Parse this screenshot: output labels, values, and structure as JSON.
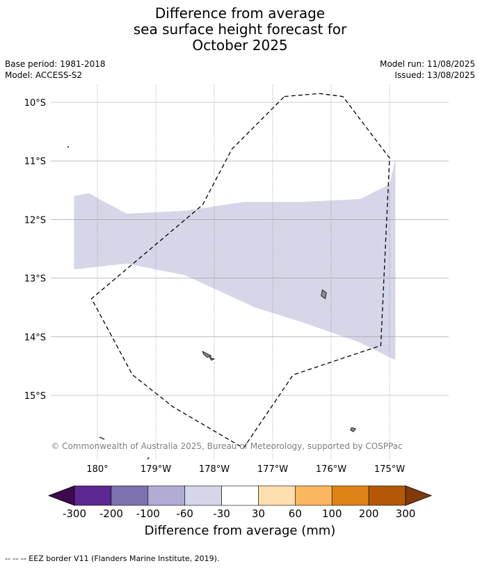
{
  "title": {
    "line1": "Difference from average",
    "line2": "sea surface height forecast for",
    "line3": "October 2025"
  },
  "meta_left": {
    "base_period": "Base period: 1981-2018",
    "model": "Model: ACCESS-S2"
  },
  "meta_right": {
    "model_run": "Model run: 11/08/2025",
    "issued": "Issued: 13/08/2025"
  },
  "copyright": "© Commonwealth of Australia 2025, Bureau of Meteorology, supported by COSPPac",
  "map": {
    "lon_range": [
      179.6,
      185.1
    ],
    "lat_range": [
      -16.0,
      -9.7
    ],
    "lat_labels": [
      "10°S",
      "11°S",
      "12°S",
      "13°S",
      "14°S",
      "15°S"
    ],
    "lat_values": [
      -10,
      -11,
      -12,
      -13,
      -14,
      -15
    ],
    "lon_labels": [
      "180°",
      "179°W",
      "178°W",
      "177°W",
      "176°W",
      "175°W"
    ],
    "lon_values": [
      180,
      181,
      182,
      183,
      184,
      185
    ],
    "band_color": "#d5d6e8",
    "band_category": "-60 to -30",
    "band_top": [
      [
        179.6,
        -11.6
      ],
      [
        179.85,
        -11.55
      ],
      [
        180.5,
        -11.9
      ],
      [
        181.5,
        -11.85
      ],
      [
        182.5,
        -11.7
      ],
      [
        183.5,
        -11.7
      ],
      [
        184.5,
        -11.65
      ],
      [
        185.0,
        -11.4
      ],
      [
        185.1,
        -10.95
      ]
    ],
    "band_bottom": [
      [
        185.1,
        -14.4
      ],
      [
        184.5,
        -14.1
      ],
      [
        183.5,
        -13.75
      ],
      [
        182.7,
        -13.5
      ],
      [
        181.5,
        -12.95
      ],
      [
        180.5,
        -12.75
      ],
      [
        179.6,
        -12.85
      ]
    ],
    "eez_border": [
      [
        183.2,
        -9.9
      ],
      [
        183.8,
        -9.85
      ],
      [
        184.2,
        -9.9
      ],
      [
        185.0,
        -10.95
      ],
      [
        184.85,
        -14.15
      ],
      [
        183.35,
        -14.65
      ],
      [
        182.5,
        -15.9
      ],
      [
        181.3,
        -15.2
      ],
      [
        180.6,
        -14.65
      ],
      [
        179.9,
        -13.35
      ],
      [
        181.8,
        -11.75
      ],
      [
        182.3,
        -10.8
      ],
      [
        183.2,
        -9.9
      ]
    ],
    "islands": [
      {
        "name": "island-center",
        "points": [
          [
            183.85,
            -13.2
          ],
          [
            183.92,
            -13.25
          ],
          [
            183.9,
            -13.35
          ],
          [
            183.83,
            -13.3
          ]
        ]
      },
      {
        "name": "island-small-west-1",
        "points": [
          [
            181.8,
            -14.25
          ],
          [
            181.9,
            -14.3
          ],
          [
            181.95,
            -14.33
          ],
          [
            181.88,
            -14.35
          ],
          [
            181.82,
            -14.3
          ]
        ]
      },
      {
        "name": "island-small-west-2",
        "points": [
          [
            181.92,
            -14.35
          ],
          [
            182.0,
            -14.38
          ],
          [
            181.95,
            -14.4
          ]
        ]
      },
      {
        "name": "island-southeast",
        "points": [
          [
            184.35,
            -15.55
          ],
          [
            184.42,
            -15.57
          ],
          [
            184.38,
            -15.62
          ],
          [
            184.33,
            -15.59
          ]
        ]
      }
    ]
  },
  "colorbar": {
    "title": "Difference from average (mm)",
    "tick_labels": [
      "-300",
      "-200",
      "-100",
      "-60",
      "-30",
      "30",
      "60",
      "100",
      "200",
      "300"
    ],
    "colors": [
      "#3d0a4e",
      "#5a2890",
      "#8072b0",
      "#b2acd4",
      "#d5d6e8",
      "#ffffff",
      "#ffdeb0",
      "#fbb660",
      "#e08316",
      "#b35906",
      "#7f3b08"
    ]
  },
  "footnote": "--  --  -- EEZ border V11 (Flanders Marine Institute, 2019)."
}
